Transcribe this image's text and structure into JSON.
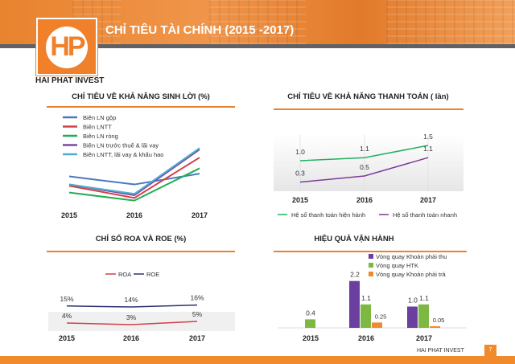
{
  "header": {
    "title": "CHỈ TIÊU TÀI CHÍNH (2015 -2017)",
    "brand": "HAI PHAT INVEST",
    "logo_text": "HP"
  },
  "footer": {
    "brand": "HAI PHAT INVEST",
    "page": "7"
  },
  "colors": {
    "accent": "#e8832f",
    "dark_strip": "#5f6166"
  },
  "chart_data": [
    {
      "type": "line",
      "title": "CHỈ TIÊU VỀ KHẢ NĂNG SINH LỜI (%)",
      "categories": [
        "2015",
        "2016",
        "2017"
      ],
      "legend": "top-left",
      "series": [
        {
          "name": "Biên LN gộp",
          "color": "#4a78c0",
          "values": [
            30,
            27,
            31
          ]
        },
        {
          "name": "Biên LNTT",
          "color": "#d0404a",
          "values": [
            26.5,
            22,
            37
          ]
        },
        {
          "name": "Biên LN ròng",
          "color": "#1fb050",
          "values": [
            24,
            21,
            33
          ]
        },
        {
          "name": "Biên LN trước thuế & lãi vay",
          "color": "#7a4aa0",
          "values": [
            27,
            23,
            40
          ]
        },
        {
          "name": "Biên LNTT, lãi vay & khấu hao",
          "color": "#4aaed0",
          "values": [
            27,
            23.5,
            40.5
          ]
        }
      ]
    },
    {
      "type": "line",
      "title": "CHỈ TIÊU VỀ KHẢ NĂNG THANH TOÁN ( lần)",
      "categories": [
        "2015",
        "2016",
        "2017"
      ],
      "legend": "bottom",
      "series": [
        {
          "name": "Hệ số thanh toán hiện hành",
          "color": "#22b060",
          "values": [
            1.0,
            1.1,
            1.5
          ],
          "labels": [
            "1.0",
            "1.1",
            "1.5"
          ]
        },
        {
          "name": "Hệ số thanh toán nhanh",
          "color": "#7a3c9a",
          "values": [
            0.3,
            0.5,
            1.1
          ],
          "labels": [
            "0.3",
            "0.5",
            "1.1"
          ]
        }
      ]
    },
    {
      "type": "line",
      "title": "CHỈ SỐ ROA VÀ ROE (%)",
      "categories": [
        "2015",
        "2016",
        "2017"
      ],
      "legend": "top",
      "series": [
        {
          "name": "ROA",
          "color": "#d0404a",
          "values": [
            4,
            3,
            5
          ],
          "labels": [
            "4%",
            "3%",
            "5%"
          ]
        },
        {
          "name": "ROE",
          "color": "#2a3470",
          "values": [
            15,
            14,
            16
          ],
          "labels": [
            "15%",
            "14%",
            "16%"
          ]
        }
      ]
    },
    {
      "type": "bar",
      "title": "HIỆU QUẢ VẬN HÀNH",
      "categories": [
        "2015",
        "2016",
        "2017"
      ],
      "legend": "top-right",
      "series": [
        {
          "name": "Vòng quay Khoản phải thu",
          "color": "#6a3fa0",
          "values": [
            null,
            2.2,
            1.0
          ],
          "labels": [
            "",
            "2.2",
            "1.0"
          ]
        },
        {
          "name": "Vòng quay HTK",
          "color": "#7cb842",
          "values": [
            0.4,
            1.1,
            1.1
          ],
          "labels": [
            "0.4",
            "1.1",
            "1.1"
          ]
        },
        {
          "name": "Vòng quay Khoản phải trả",
          "color": "#f08a2a",
          "values": [
            null,
            0.25,
            0.05
          ],
          "labels": [
            "",
            "0.25",
            "0.05"
          ]
        }
      ]
    }
  ]
}
